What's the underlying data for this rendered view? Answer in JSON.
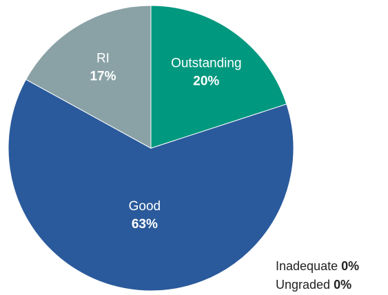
{
  "chart_data": {
    "type": "pie",
    "categories": [
      "Outstanding",
      "Good",
      "RI",
      "Inadequate",
      "Ungraded"
    ],
    "values": [
      20,
      63,
      17,
      0,
      0
    ],
    "value_labels": [
      "20%",
      "63%",
      "17%",
      "0%",
      "0%"
    ],
    "colors": [
      "#00987f",
      "#2a5a9b",
      "#8aa2a6",
      "#c0504d",
      "#bbbbbb"
    ]
  }
}
